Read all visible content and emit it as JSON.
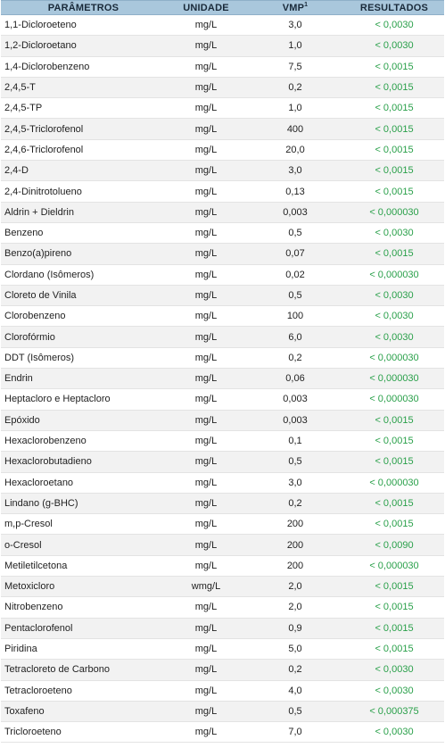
{
  "header": {
    "param": "PARÂMETROS",
    "unit": "UNIDADE",
    "vmp": "VMP",
    "vmp_sup": "1",
    "result": "RESULTADOS"
  },
  "colors": {
    "header_bg": "#a9c7dc",
    "result_text": "#2aa04a",
    "row_alt": "#f2f2f2"
  },
  "rows": [
    {
      "param": "1,1-Dicloroeteno",
      "unit": "mg/L",
      "vmp": "3,0",
      "result": "< 0,0030"
    },
    {
      "param": "1,2-Dicloroetano",
      "unit": "mg/L",
      "vmp": "1,0",
      "result": "< 0,0030"
    },
    {
      "param": "1,4-Diclorobenzeno",
      "unit": "mg/L",
      "vmp": "7,5",
      "result": "< 0,0015"
    },
    {
      "param": "2,4,5-T",
      "unit": "mg/L",
      "vmp": "0,2",
      "result": "< 0,0015"
    },
    {
      "param": "2,4,5-TP",
      "unit": "mg/L",
      "vmp": "1,0",
      "result": "< 0,0015"
    },
    {
      "param": "2,4,5-Triclorofenol",
      "unit": "mg/L",
      "vmp": "400",
      "result": "< 0,0015"
    },
    {
      "param": "2,4,6-Triclorofenol",
      "unit": "mg/L",
      "vmp": "20,0",
      "result": "< 0,0015"
    },
    {
      "param": "2,4-D",
      "unit": "mg/L",
      "vmp": "3,0",
      "result": "< 0,0015"
    },
    {
      "param": "2,4-Dinitrotolueno",
      "unit": "mg/L",
      "vmp": "0,13",
      "result": "< 0,0015"
    },
    {
      "param": "Aldrin + Dieldrin",
      "unit": "mg/L",
      "vmp": "0,003",
      "result": "< 0,000030"
    },
    {
      "param": "Benzeno",
      "unit": "mg/L",
      "vmp": "0,5",
      "result": "< 0,0030"
    },
    {
      "param": "Benzo(a)pireno",
      "unit": "mg/L",
      "vmp": "0,07",
      "result": "< 0,0015"
    },
    {
      "param": "Clordano (Isômeros)",
      "unit": "mg/L",
      "vmp": "0,02",
      "result": "< 0,000030"
    },
    {
      "param": "Cloreto de Vinila",
      "unit": "mg/L",
      "vmp": "0,5",
      "result": "< 0,0030"
    },
    {
      "param": "Clorobenzeno",
      "unit": "mg/L",
      "vmp": "100",
      "result": "< 0,0030"
    },
    {
      "param": "Clorofórmio",
      "unit": "mg/L",
      "vmp": "6,0",
      "result": "< 0,0030"
    },
    {
      "param": "DDT (Isômeros)",
      "unit": "mg/L",
      "vmp": "0,2",
      "result": "< 0,000030"
    },
    {
      "param": "Endrin",
      "unit": "mg/L",
      "vmp": "0,06",
      "result": "< 0,000030"
    },
    {
      "param": "Heptacloro e Heptacloro",
      "unit": "mg/L",
      "vmp": "0,003",
      "result": "< 0,000030"
    },
    {
      "param": "Epóxido",
      "unit": "mg/L",
      "vmp": "0,003",
      "result": "< 0,0015"
    },
    {
      "param": "Hexaclorobenzeno",
      "unit": "mg/L",
      "vmp": "0,1",
      "result": "< 0,0015"
    },
    {
      "param": "Hexaclorobutadieno",
      "unit": "mg/L",
      "vmp": "0,5",
      "result": "< 0,0015"
    },
    {
      "param": "Hexacloroetano",
      "unit": "mg/L",
      "vmp": "3,0",
      "result": "< 0,000030"
    },
    {
      "param": "Lindano (g-BHC)",
      "unit": "mg/L",
      "vmp": "0,2",
      "result": "< 0,0015"
    },
    {
      "param": "m,p-Cresol",
      "unit": "mg/L",
      "vmp": "200",
      "result": "< 0,0015"
    },
    {
      "param": "o-Cresol",
      "unit": "mg/L",
      "vmp": "200",
      "result": "< 0,0090"
    },
    {
      "param": "Metiletilcetona",
      "unit": "mg/L",
      "vmp": "200",
      "result": "< 0,000030"
    },
    {
      "param": "Metoxicloro",
      "unit": "wmg/L",
      "vmp": "2,0",
      "result": "< 0,0015"
    },
    {
      "param": "Nitrobenzeno",
      "unit": "mg/L",
      "vmp": "2,0",
      "result": "< 0,0015"
    },
    {
      "param": "Pentaclorofenol",
      "unit": "mg/L",
      "vmp": "0,9",
      "result": "< 0,0015"
    },
    {
      "param": "Piridina",
      "unit": "mg/L",
      "vmp": "5,0",
      "result": "< 0,0015"
    },
    {
      "param": "Tetracloreto de Carbono",
      "unit": "mg/L",
      "vmp": "0,2",
      "result": "< 0,0030"
    },
    {
      "param": "Tetracloroeteno",
      "unit": "mg/L",
      "vmp": "4,0",
      "result": "< 0,0030"
    },
    {
      "param": "Toxafeno",
      "unit": "mg/L",
      "vmp": "0,5",
      "result": "< 0,000375"
    },
    {
      "param": "Tricloroeteno",
      "unit": "mg/L",
      "vmp": "7,0",
      "result": "< 0,0030"
    }
  ]
}
